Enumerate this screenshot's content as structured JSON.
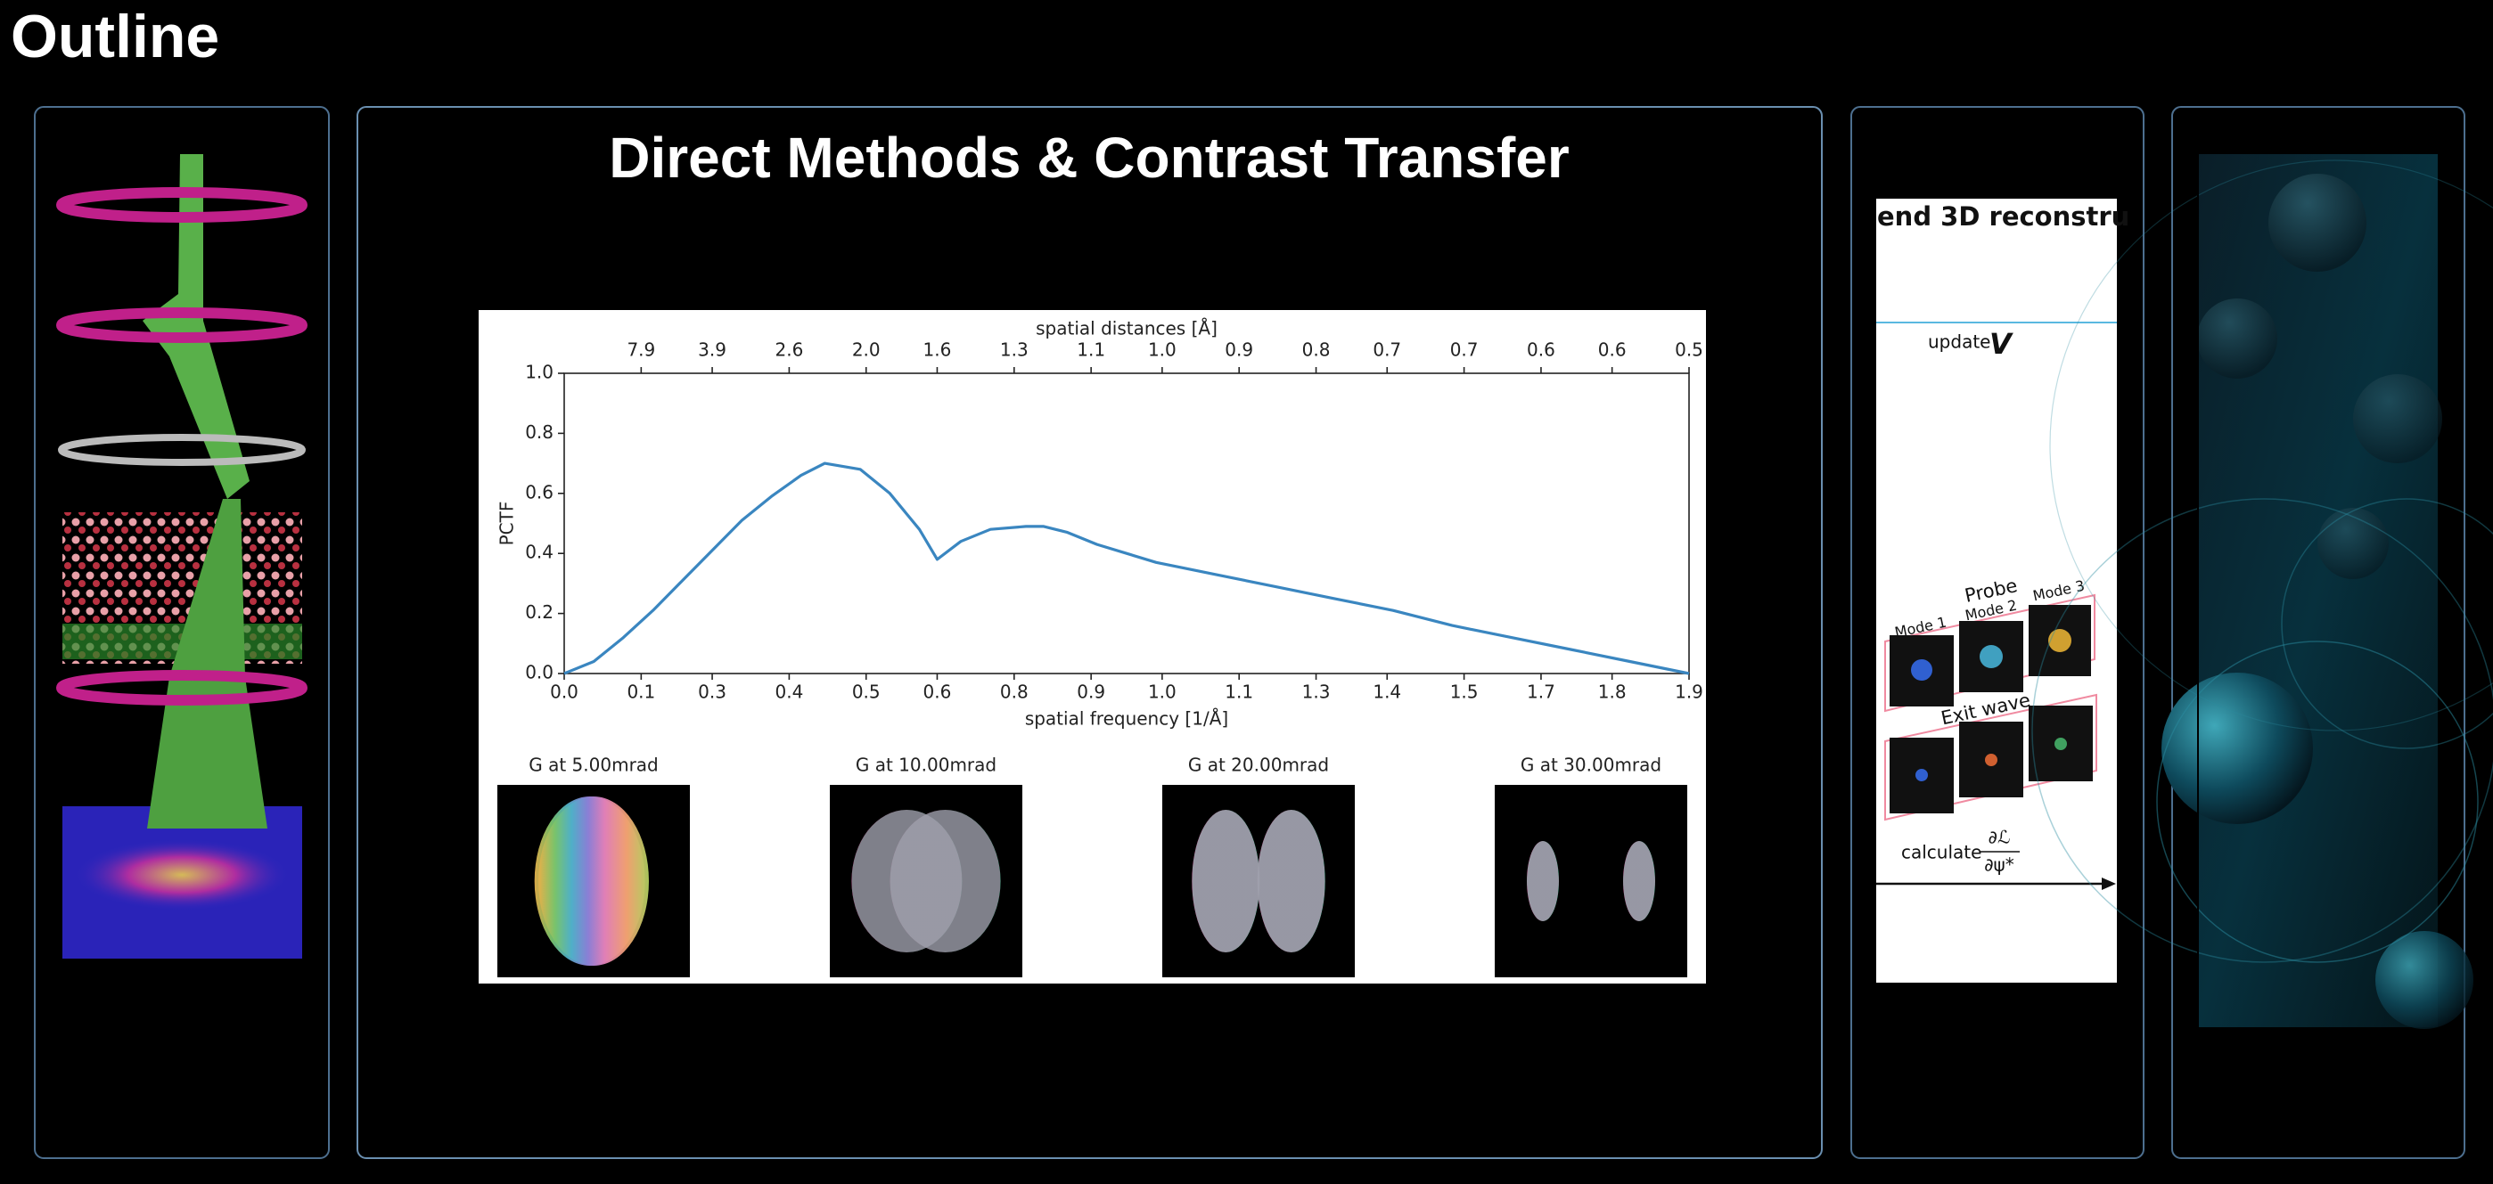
{
  "header": {
    "title": "Outline"
  },
  "main_slide": {
    "title": "Direct Methods & Contrast Transfer",
    "figure": {
      "type": "line",
      "top_axis_label": "spatial distances [Å]",
      "top_tick_labels": [
        "7.9",
        "3.9",
        "2.6",
        "2.0",
        "1.6",
        "1.3",
        "1.1",
        "1.0",
        "0.9",
        "0.8",
        "0.7",
        "0.7",
        "0.6",
        "0.6",
        "0.5"
      ],
      "x_label": "spatial frequency [1/Å]",
      "y_label": "PCTF",
      "color": "#3a86c0",
      "xlim": [
        0,
        1.9
      ],
      "ylim": [
        0,
        1
      ],
      "xticks": [
        {
          "value": 0,
          "label": "0.0"
        },
        {
          "value": 0.13,
          "label": "0.1"
        },
        {
          "value": 0.25,
          "label": "0.3"
        },
        {
          "value": 0.38,
          "label": "0.4"
        },
        {
          "value": 0.51,
          "label": "0.5"
        },
        {
          "value": 0.63,
          "label": "0.6"
        },
        {
          "value": 0.76,
          "label": "0.8"
        },
        {
          "value": 0.89,
          "label": "0.9"
        },
        {
          "value": 1.01,
          "label": "1.0"
        },
        {
          "value": 1.14,
          "label": "1.1"
        },
        {
          "value": 1.27,
          "label": "1.3"
        },
        {
          "value": 1.39,
          "label": "1.4"
        },
        {
          "value": 1.52,
          "label": "1.5"
        },
        {
          "value": 1.65,
          "label": "1.7"
        },
        {
          "value": 1.77,
          "label": "1.8"
        },
        {
          "value": 1.9,
          "label": "1.9"
        }
      ],
      "yticks": [
        {
          "value": 0,
          "label": "0.0"
        },
        {
          "value": 0.2,
          "label": "0.2"
        },
        {
          "value": 0.4,
          "label": "0.4"
        },
        {
          "value": 0.6,
          "label": "0.6"
        },
        {
          "value": 0.8,
          "label": "0.8"
        },
        {
          "value": 1,
          "label": "1.0"
        }
      ],
      "x": [
        0,
        0.05,
        0.1,
        0.15,
        0.2,
        0.25,
        0.3,
        0.35,
        0.4,
        0.44,
        0.5,
        0.55,
        0.6,
        0.63,
        0.67,
        0.72,
        0.78,
        0.81,
        0.85,
        0.9,
        0.95,
        1.0,
        1.1,
        1.2,
        1.3,
        1.4,
        1.5,
        1.6,
        1.7,
        1.8,
        1.9
      ],
      "values": [
        0,
        0.04,
        0.12,
        0.21,
        0.31,
        0.41,
        0.51,
        0.59,
        0.66,
        0.7,
        0.68,
        0.6,
        0.48,
        0.38,
        0.44,
        0.48,
        0.49,
        0.49,
        0.47,
        0.43,
        0.4,
        0.37,
        0.33,
        0.29,
        0.25,
        0.21,
        0.16,
        0.12,
        0.08,
        0.04,
        0
      ],
      "panels": [
        "G at 5.00mrad",
        "G at 10.00mrad",
        "G at 20.00mrad",
        "G at 30.00mrad"
      ]
    }
  },
  "right_slide": {
    "title": "end 3D reconstru",
    "update": "update",
    "update_symbol": "V",
    "probe": "Probe",
    "modes": [
      "Mode 1",
      "Mode 2",
      "Mode 3"
    ],
    "exit_wave": "Exit wave",
    "calculate": "calculate",
    "grad_numerator": "∂ℒ",
    "grad_denominator": "∂ψ*"
  }
}
